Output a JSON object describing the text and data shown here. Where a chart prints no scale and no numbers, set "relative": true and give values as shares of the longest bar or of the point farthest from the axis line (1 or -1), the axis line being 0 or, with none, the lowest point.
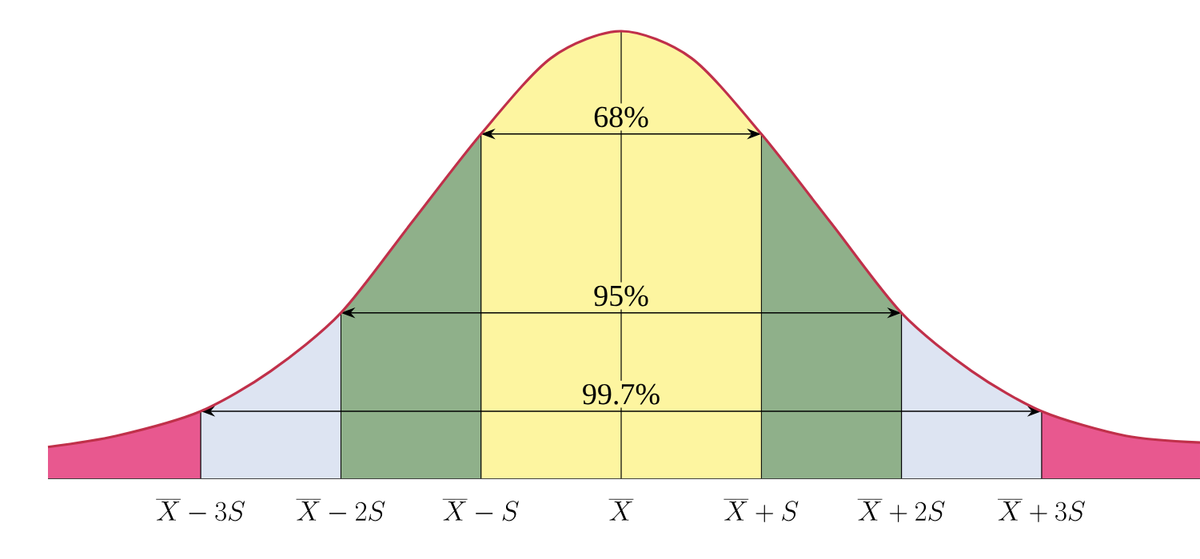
{
  "chart_data": {
    "type": "line",
    "relative": true,
    "x": [
      -4.09,
      -3.6,
      -3,
      -2.5,
      -2,
      -1.5,
      -1,
      -0.5,
      0,
      0.5,
      1,
      1.5,
      2,
      2.5,
      3,
      3.6,
      4.13
    ],
    "series": [
      {
        "color": "#c0304a",
        "values": [
          0.07,
          0.095,
          0.15,
          0.24,
          0.37,
          0.57,
          0.77,
          0.94,
          1,
          0.94,
          0.77,
          0.57,
          0.37,
          0.24,
          0.15,
          0.095,
          0.08
        ]
      }
    ],
    "xlim": [
      -4.09,
      4.13
    ],
    "xticks": [
      {
        "value": -3,
        "label": "\\overline{X}-3S"
      },
      {
        "value": -2,
        "label": "\\overline{X}-2S"
      },
      {
        "value": -1,
        "label": "\\overline{X}-S"
      },
      {
        "value": 0,
        "label": "\\overline{X}"
      },
      {
        "value": 1,
        "label": "\\overline{X}+S"
      },
      {
        "value": 2,
        "label": "\\overline{X}+2S"
      },
      {
        "value": 3,
        "label": "\\overline{X}+3S"
      }
    ],
    "bands": [
      {
        "axis": "x",
        "from": -4.09,
        "to": -3,
        "color": "#e8588f"
      },
      {
        "axis": "x",
        "from": 3,
        "to": 4.13,
        "color": "#e8588f"
      },
      {
        "axis": "x",
        "from": -3,
        "to": 3,
        "label": "99.7%",
        "color": "#dde4f2"
      },
      {
        "axis": "x",
        "from": -2,
        "to": 2,
        "label": "95%",
        "color": "#8fb08a"
      },
      {
        "axis": "x",
        "from": -1,
        "to": 1,
        "label": "68%",
        "color": "#fdf5a0"
      }
    ],
    "grid": "x",
    "marker": "none",
    "line_style": "solid"
  }
}
